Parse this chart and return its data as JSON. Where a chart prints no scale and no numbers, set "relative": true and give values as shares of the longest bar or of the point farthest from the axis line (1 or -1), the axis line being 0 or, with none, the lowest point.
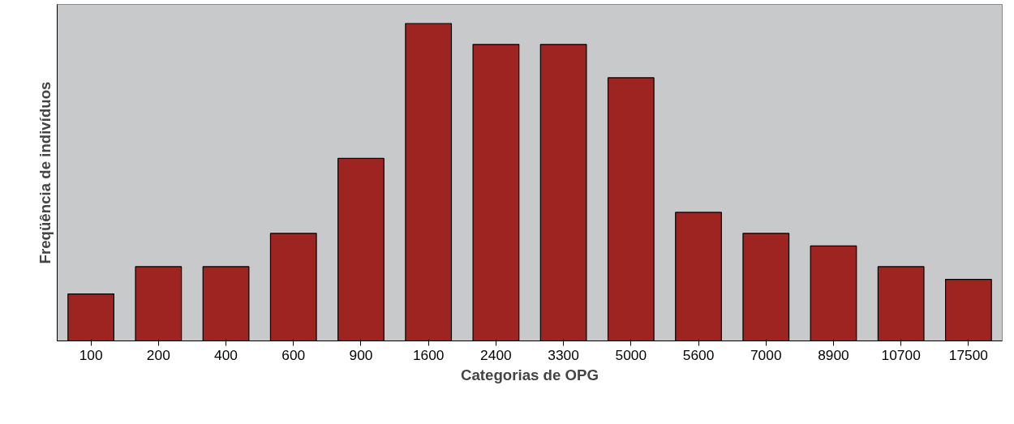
{
  "chart_data": {
    "type": "bar",
    "xlabel": "Categorias de OPG",
    "ylabel": "Freqüência de indivíduos",
    "relative": true,
    "categories": [
      "100",
      "200",
      "400",
      "600",
      "900",
      "1600",
      "2400",
      "3300",
      "5000",
      "5600",
      "7000",
      "8900",
      "10700",
      "17500"
    ],
    "values": [
      0.148,
      0.234,
      0.234,
      0.339,
      0.575,
      1,
      0.934,
      0.934,
      0.829,
      0.405,
      0.339,
      0.299,
      0.234,
      0.194
    ],
    "color": "#9e2421"
  }
}
